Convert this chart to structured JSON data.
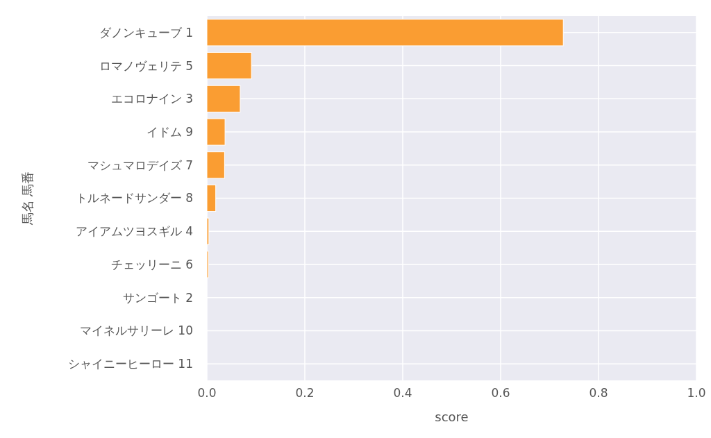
{
  "chart_data": {
    "type": "bar",
    "orientation": "horizontal",
    "categories": [
      "ダノンキューブ 1",
      "ロマノヴェリテ 5",
      "エコロナイン 3",
      "イドム 9",
      "マシュマロデイズ 7",
      "トルネードサンダー 8",
      "アイアムツヨスギル 4",
      "チェッリーニ 6",
      "サンゴート 2",
      "マイネルサリーレ 10",
      "シャイニーヒーロー 11"
    ],
    "values": [
      0.728,
      0.091,
      0.068,
      0.037,
      0.036,
      0.018,
      0.004,
      0.003,
      0,
      0,
      0
    ],
    "color": "#fa9d32",
    "xlim": [
      0,
      1
    ],
    "xticks": [
      {
        "value": 0,
        "label": "0.0"
      },
      0.2,
      0.4,
      0.6,
      0.8,
      {
        "value": 1,
        "label": "1.0"
      }
    ],
    "xlabel": "score",
    "ylabel": "馬名 馬番",
    "grid": true
  }
}
